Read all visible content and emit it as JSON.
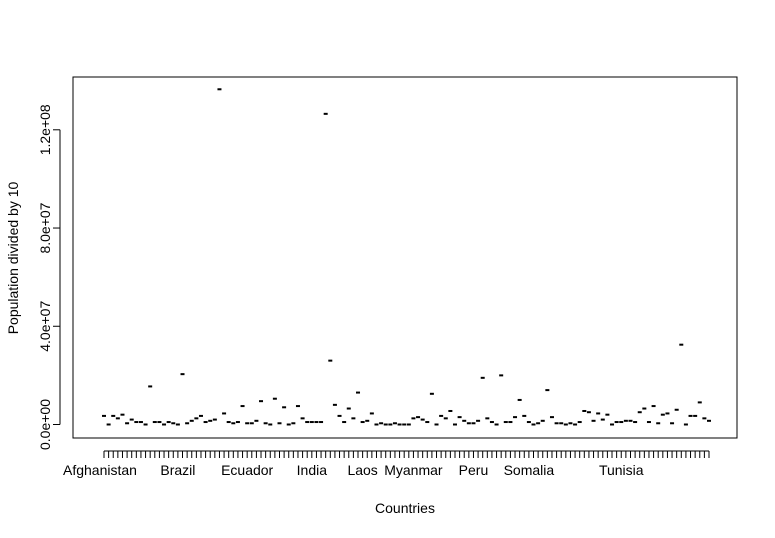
{
  "chart_data": {
    "type": "scatter",
    "xlabel": "Countries",
    "ylabel": "Population divided by 10",
    "y_ticks": [
      "0.0e+00",
      "4.0e+07",
      "8.0e+07",
      "1.2e+08"
    ],
    "y_tick_values": [
      0,
      40000000,
      80000000,
      120000000
    ],
    "ylim": [
      -5500000,
      141500000
    ],
    "x_count": 132,
    "x_tick_labels": [
      {
        "label": "Afghanistan",
        "index": 1
      },
      {
        "label": "Brazil",
        "index": 17
      },
      {
        "label": "Ecuador",
        "index": 32
      },
      {
        "label": "India",
        "index": 46
      },
      {
        "label": "Laos",
        "index": 57
      },
      {
        "label": "Myanmar",
        "index": 68
      },
      {
        "label": "Peru",
        "index": 81
      },
      {
        "label": "Somalia",
        "index": 93
      },
      {
        "label": "Tunisia",
        "index": 113
      }
    ],
    "values": [
      3500000,
      0,
      3500000,
      2500000,
      4000000,
      500000,
      2000000,
      1000000,
      1000000,
      0,
      15500000,
      1000000,
      1000000,
      0,
      1000000,
      500000,
      0,
      20500000,
      500000,
      1500000,
      2500000,
      3500000,
      1000000,
      1500000,
      2000000,
      136500000,
      4500000,
      1000000,
      500000,
      1000000,
      7500000,
      500000,
      500000,
      1500000,
      9500000,
      500000,
      0,
      10500000,
      500000,
      7000000,
      0,
      500000,
      7500000,
      2500000,
      1000000,
      1000000,
      1000000,
      1000000,
      126500000,
      26000000,
      8000000,
      3500000,
      1000000,
      6500000,
      2500000,
      13000000,
      1000000,
      1500000,
      4500000,
      0,
      500000,
      0,
      0,
      500000,
      0,
      0,
      0,
      2500000,
      3000000,
      2000000,
      1000000,
      12500000,
      0,
      3500000,
      2500000,
      5500000,
      0,
      3000000,
      1500000,
      500000,
      500000,
      1500000,
      19000000,
      2500000,
      1000000,
      0,
      20000000,
      1000000,
      1000000,
      3000000,
      10000000,
      3500000,
      1000000,
      0,
      500000,
      1500000,
      14000000,
      3000000,
      500000,
      500000,
      0,
      500000,
      0,
      1000000,
      5500000,
      5000000,
      1500000,
      4500000,
      2000000,
      4000000,
      0,
      1000000,
      1000000,
      1500000,
      1500000,
      1000000,
      5000000,
      6500000,
      1000000,
      7500000,
      500000,
      4000000,
      4500000,
      500000,
      6000000,
      32500000,
      0,
      3500000,
      3500000,
      9000000,
      2500000,
      1500000
    ]
  }
}
